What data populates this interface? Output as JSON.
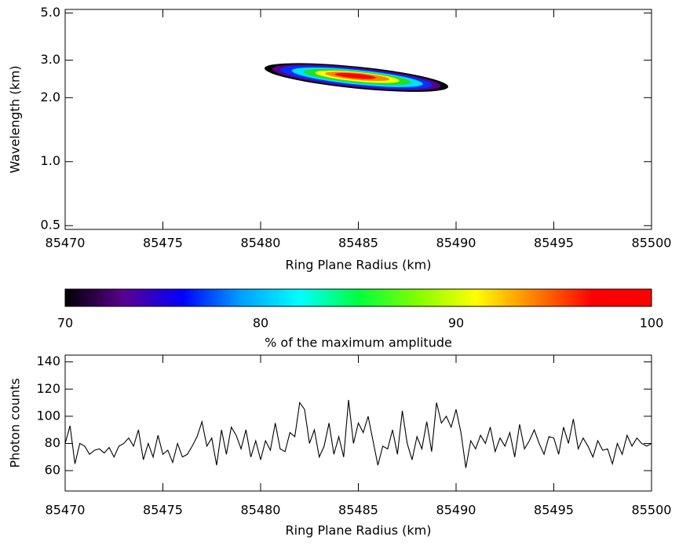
{
  "chart_data": [
    {
      "type": "contour",
      "x_label": "Ring Plane Radius (km)",
      "y_label": "Wavelength (km)",
      "xlim": [
        85470,
        85500
      ],
      "xticks": [
        85470,
        85475,
        85480,
        85485,
        85490,
        85495,
        85500
      ],
      "ylim": [
        0.48,
        5.2
      ],
      "log_y": true,
      "yticks": [
        {
          "value": 0.5,
          "label": "0.5"
        },
        {
          "value": 1,
          "label": "1.0"
        },
        {
          "value": 2,
          "label": "2.0"
        },
        {
          "value": 3,
          "label": "3.0"
        },
        {
          "value": 5,
          "label": "5.0"
        }
      ],
      "contours": [
        {
          "level": 70,
          "color": "#000000",
          "x": [
            85480.2,
            85489.6
          ],
          "y": [
            2.75,
            2.25
          ]
        },
        {
          "level": 75,
          "color": "#5a0090",
          "x": [
            85480.6,
            85489.2
          ],
          "y": [
            2.73,
            2.27
          ]
        },
        {
          "level": 78,
          "color": "#0030ff",
          "x": [
            85481.0,
            85488.8
          ],
          "y": [
            2.71,
            2.29
          ]
        },
        {
          "level": 82,
          "color": "#00e0ff",
          "x": [
            85481.6,
            85488.3
          ],
          "y": [
            2.68,
            2.32
          ]
        },
        {
          "level": 86,
          "color": "#20e020",
          "x": [
            85482.2,
            85487.7
          ],
          "y": [
            2.65,
            2.36
          ]
        },
        {
          "level": 92,
          "color": "#ffff00",
          "x": [
            85482.8,
            85487.1
          ],
          "y": [
            2.62,
            2.4
          ]
        },
        {
          "level": 96,
          "color": "#ff8000",
          "x": [
            85483.3,
            85486.6
          ],
          "y": [
            2.6,
            2.44
          ]
        },
        {
          "level": 100,
          "color": "#ff0000",
          "x": [
            85483.8,
            85485.9
          ],
          "y": [
            2.58,
            2.48
          ]
        }
      ]
    },
    {
      "type": "colorbar",
      "x_label": "% of the maximum amplitude",
      "xlim": [
        70,
        100
      ],
      "xticks": [
        70,
        80,
        90,
        100
      ],
      "colors": [
        "#000000",
        "#5a0090",
        "#0000ff",
        "#00a0ff",
        "#00ffff",
        "#00ff40",
        "#80ff00",
        "#ffff00",
        "#ff8000",
        "#ff0000",
        "#ff0000"
      ]
    },
    {
      "type": "line",
      "x_label": "Ring Plane Radius (km)",
      "y_label": "Photon counts",
      "xlim": [
        85470,
        85500
      ],
      "xticks": [
        85470,
        85475,
        85480,
        85485,
        85490,
        85495,
        85500
      ],
      "ylim": [
        45,
        145
      ],
      "yticks": [
        60,
        80,
        100,
        120,
        140
      ],
      "series": [
        {
          "color": "#000000",
          "x": [
            85470,
            85470.25,
            85470.5,
            85470.75,
            85471,
            85471.25,
            85471.5,
            85471.75,
            85472,
            85472.25,
            85472.5,
            85472.75,
            85473,
            85473.25,
            85473.5,
            85473.75,
            85474,
            85474.25,
            85474.5,
            85474.75,
            85475,
            85475.25,
            85475.5,
            85475.75,
            85476,
            85476.25,
            85476.5,
            85476.75,
            85477,
            85477.25,
            85477.5,
            85477.75,
            85478,
            85478.25,
            85478.5,
            85478.75,
            85479,
            85479.25,
            85479.5,
            85479.75,
            85480,
            85480.25,
            85480.5,
            85480.75,
            85481,
            85481.25,
            85481.5,
            85481.75,
            85482,
            85482.25,
            85482.5,
            85482.75,
            85483,
            85483.25,
            85483.5,
            85483.75,
            85484,
            85484.25,
            85484.5,
            85484.75,
            85485,
            85485.25,
            85485.5,
            85485.75,
            85486,
            85486.25,
            85486.5,
            85486.75,
            85487,
            85487.25,
            85487.5,
            85487.75,
            85488,
            85488.25,
            85488.5,
            85488.75,
            85489,
            85489.25,
            85489.5,
            85489.75,
            85490,
            85490.25,
            85490.5,
            85490.75,
            85491,
            85491.25,
            85491.5,
            85491.75,
            85492,
            85492.25,
            85492.5,
            85492.75,
            85493,
            85493.25,
            85493.5,
            85493.75,
            85494,
            85494.25,
            85494.5,
            85494.75,
            85495,
            85495.25,
            85495.5,
            85495.75,
            85496,
            85496.25,
            85496.5,
            85496.75,
            85497,
            85497.25,
            85497.5,
            85497.75,
            85498,
            85498.25,
            85498.5,
            85498.75,
            85499,
            85499.25,
            85499.5,
            85499.75,
            85500
          ],
          "values": [
            80,
            93,
            65,
            80,
            78,
            72,
            75,
            76,
            73,
            77,
            70,
            78,
            80,
            84,
            78,
            90,
            68,
            80,
            70,
            86,
            72,
            75,
            66,
            80,
            70,
            72,
            78,
            85,
            96,
            78,
            84,
            64,
            90,
            72,
            92,
            86,
            76,
            90,
            70,
            82,
            68,
            82,
            75,
            95,
            76,
            74,
            88,
            85,
            110,
            105,
            80,
            90,
            70,
            78,
            95,
            72,
            85,
            70,
            112,
            80,
            95,
            88,
            100,
            82,
            64,
            78,
            76,
            90,
            72,
            104,
            80,
            68,
            85,
            76,
            96,
            74,
            110,
            95,
            100,
            92,
            105,
            88,
            62,
            82,
            76,
            86,
            80,
            92,
            74,
            84,
            78,
            88,
            70,
            94,
            76,
            82,
            90,
            80,
            72,
            85,
            84,
            72,
            92,
            80,
            98,
            76,
            84,
            78,
            70,
            82,
            75,
            76,
            65,
            80,
            72,
            86,
            78,
            84,
            80,
            78,
            80
          ]
        }
      ]
    }
  ]
}
